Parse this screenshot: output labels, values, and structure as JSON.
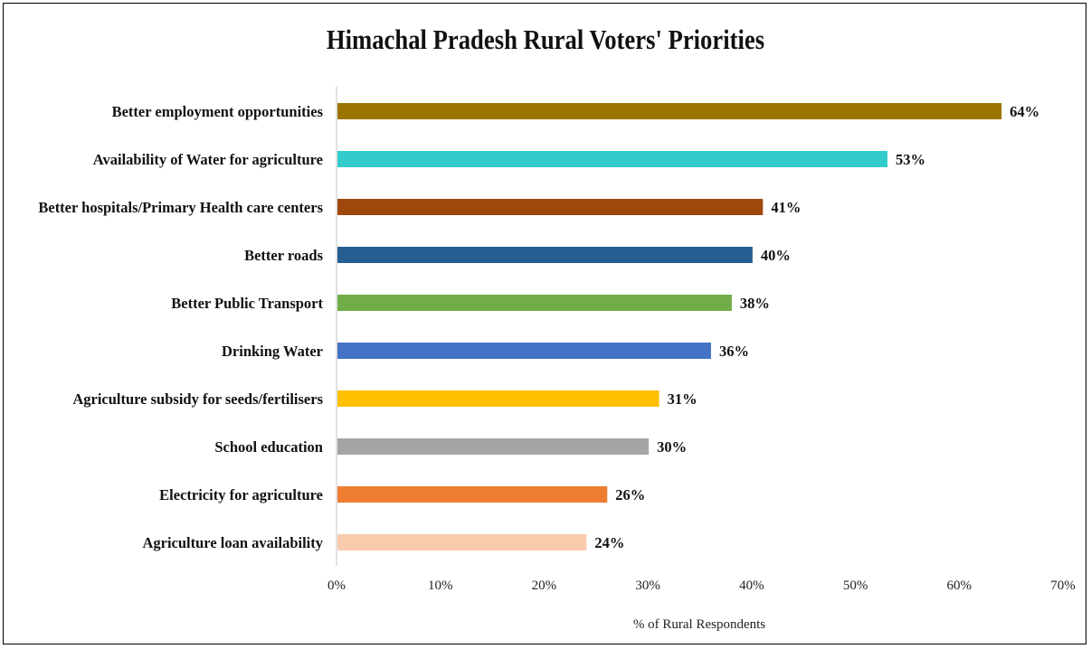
{
  "chart_data": {
    "type": "bar",
    "orientation": "horizontal",
    "title": "Himachal Pradesh Rural Voters' Priorities",
    "xlabel": "% of Rural Respondents",
    "ylabel": "",
    "xlim": [
      0,
      70
    ],
    "xticks": [
      "0%",
      "10%",
      "20%",
      "30%",
      "40%",
      "50%",
      "60%",
      "70%"
    ],
    "grid": false,
    "legend": "none",
    "categories": [
      "Better employment opportunities",
      "Availability of Water for agriculture",
      "Better hospitals/Primary Health care centers",
      "Better roads",
      "Better Public Transport",
      "Drinking Water",
      "Agriculture subsidy for seeds/fertilisers",
      "School education",
      "Electricity for agriculture",
      "Agriculture loan availability"
    ],
    "values": [
      64,
      53,
      41,
      40,
      38,
      36,
      31,
      30,
      26,
      24
    ],
    "value_labels": [
      "64%",
      "53%",
      "41%",
      "40%",
      "38%",
      "36%",
      "31%",
      "30%",
      "26%",
      "24%"
    ],
    "colors": [
      "#9A7600",
      "#33CCCC",
      "#9E480E",
      "#255E91",
      "#70AD47",
      "#4472C4",
      "#FFC000",
      "#A5A5A5",
      "#ED7D31",
      "#F8CBAD"
    ]
  }
}
